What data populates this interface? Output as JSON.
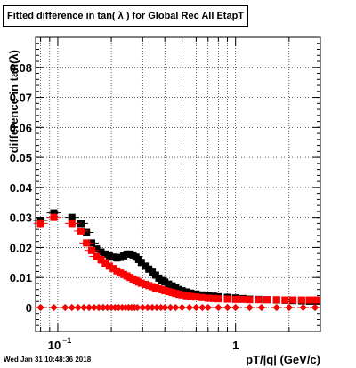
{
  "chart_data": {
    "type": "scatter",
    "title": "Fitted difference in tan( λ ) for Global Rec All EtapT",
    "xlabel": "pT/|q| (GeV/c)",
    "ylabel": "difference in tan(λ)",
    "xscale": "log",
    "xlim": [
      0.075,
      3.0
    ],
    "ylim": [
      -0.008,
      0.09
    ],
    "x_tick_labels": [
      {
        "value": 0.1,
        "label": "10",
        "exponent": "−1"
      },
      {
        "value": 1,
        "label": "1"
      }
    ],
    "y_ticks": [
      0,
      0.01,
      0.02,
      0.03,
      0.04,
      0.05,
      0.06,
      0.07,
      0.08
    ],
    "y_tick_labels": [
      "0",
      "0.01",
      "0.02",
      "0.03",
      "0.04",
      "0.05",
      "0.06",
      "0.07",
      "0.08"
    ],
    "grid": true,
    "legend": "none",
    "series": [
      {
        "color": "#000000",
        "x": [
          0.08,
          0.095,
          0.12,
          0.135,
          0.145,
          0.155,
          0.165,
          0.175,
          0.185,
          0.195,
          0.205,
          0.215,
          0.225,
          0.235,
          0.245,
          0.255,
          0.265,
          0.275,
          0.285,
          0.295,
          0.31,
          0.325,
          0.34,
          0.355,
          0.37,
          0.385,
          0.4,
          0.42,
          0.44,
          0.46,
          0.48,
          0.5,
          0.53,
          0.56,
          0.6,
          0.65,
          0.7,
          0.75,
          0.8,
          0.9,
          1.0,
          1.1,
          1.2,
          1.35,
          1.5,
          1.7,
          1.9,
          2.1,
          2.35,
          2.6,
          2.85
        ],
        "y": [
          0.029,
          0.0315,
          0.03,
          0.028,
          0.025,
          0.0215,
          0.0195,
          0.0185,
          0.0178,
          0.0172,
          0.0168,
          0.0165,
          0.0167,
          0.0172,
          0.0178,
          0.0178,
          0.0175,
          0.0168,
          0.016,
          0.015,
          0.0138,
          0.0128,
          0.0118,
          0.0108,
          0.0098,
          0.009,
          0.0085,
          0.0078,
          0.0072,
          0.0066,
          0.006,
          0.0056,
          0.0052,
          0.0048,
          0.0045,
          0.0042,
          0.004,
          0.0038,
          0.0036,
          0.0034,
          0.0032,
          0.003,
          0.0028,
          0.0027,
          0.0026,
          0.0025,
          0.0024,
          0.0023,
          0.0022,
          0.0021,
          0.0021
        ]
      },
      {
        "color": "#ff0000",
        "x": [
          0.08,
          0.095,
          0.12,
          0.135,
          0.145,
          0.155,
          0.165,
          0.175,
          0.185,
          0.195,
          0.205,
          0.215,
          0.225,
          0.235,
          0.245,
          0.255,
          0.265,
          0.275,
          0.285,
          0.295,
          0.31,
          0.325,
          0.34,
          0.355,
          0.37,
          0.385,
          0.4,
          0.42,
          0.44,
          0.46,
          0.48,
          0.5,
          0.53,
          0.56,
          0.6,
          0.65,
          0.7,
          0.75,
          0.8,
          0.9,
          1.0,
          1.1,
          1.2,
          1.35,
          1.5,
          1.7,
          1.9,
          2.1,
          2.35,
          2.6,
          2.85
        ],
        "y": [
          0.028,
          0.03,
          0.028,
          0.0255,
          0.0215,
          0.019,
          0.017,
          0.016,
          0.0148,
          0.0138,
          0.013,
          0.0122,
          0.0115,
          0.011,
          0.0105,
          0.01,
          0.0095,
          0.009,
          0.0085,
          0.0081,
          0.0077,
          0.0073,
          0.0069,
          0.0065,
          0.0062,
          0.0059,
          0.0056,
          0.0053,
          0.005,
          0.0047,
          0.0044,
          0.0042,
          0.0039,
          0.0037,
          0.0035,
          0.0033,
          0.0031,
          0.003,
          0.0029,
          0.0028,
          0.0027,
          0.0027,
          0.0026,
          0.0026,
          0.0026,
          0.0026,
          0.0025,
          0.0025,
          0.0025,
          0.0025,
          0.0025
        ]
      },
      {
        "color": "#000000",
        "marker": "diamond",
        "x": [
          0.08,
          0.095,
          0.11,
          0.12,
          0.13,
          0.14,
          0.15,
          0.16,
          0.17,
          0.18,
          0.19,
          0.2,
          0.21,
          0.22,
          0.23,
          0.24,
          0.25,
          0.26,
          0.27,
          0.28,
          0.3,
          0.32,
          0.34,
          0.36,
          0.38,
          0.4,
          0.43,
          0.46,
          0.5,
          0.55,
          0.6,
          0.65,
          0.7,
          0.8,
          0.9,
          1.0,
          1.2,
          1.4,
          1.7,
          2.0,
          2.4,
          2.8
        ],
        "y": [
          0.0,
          0.0,
          0.0,
          0.0,
          0.0,
          0.0,
          0.0,
          0.0,
          0.0,
          0.0,
          0.0,
          0.0,
          0.0,
          0.0,
          0.0,
          0.0,
          0.0,
          0.0,
          0.0,
          0.0,
          0.0,
          0.0,
          0.0,
          0.0,
          0.0,
          0.0,
          0.0,
          0.0,
          0.0,
          0.0,
          0.0,
          0.0,
          0.0,
          0.0,
          0.0,
          0.0,
          0.0,
          0.0,
          0.0,
          0.0,
          0.0,
          0.0
        ]
      },
      {
        "color": "#ff0000",
        "marker": "diamond",
        "x": [
          0.08,
          0.095,
          0.11,
          0.12,
          0.13,
          0.14,
          0.15,
          0.16,
          0.17,
          0.18,
          0.19,
          0.2,
          0.21,
          0.22,
          0.23,
          0.24,
          0.25,
          0.26,
          0.27,
          0.28,
          0.3,
          0.32,
          0.34,
          0.36,
          0.38,
          0.4,
          0.43,
          0.46,
          0.5,
          0.55,
          0.6,
          0.65,
          0.7,
          0.8,
          0.9,
          1.0,
          1.2,
          1.4,
          1.7,
          2.0,
          2.4,
          2.8
        ],
        "y": [
          0.0,
          0.0,
          0.0,
          0.0,
          0.0,
          0.0,
          0.0,
          0.0,
          0.0,
          0.0,
          0.0,
          0.0,
          0.0,
          0.0,
          0.0,
          0.0,
          0.0,
          0.0,
          0.0,
          0.0,
          0.0,
          0.0,
          0.0,
          0.0,
          0.0,
          0.0,
          0.0,
          0.0,
          0.0,
          0.0,
          0.0,
          0.0,
          0.0,
          0.0,
          0.0,
          0.0,
          0.0,
          0.0,
          0.0,
          0.0,
          0.0,
          0.0
        ]
      }
    ]
  },
  "footer": {
    "timestamp": "Wed Jan 31 10:48:36 2018"
  }
}
